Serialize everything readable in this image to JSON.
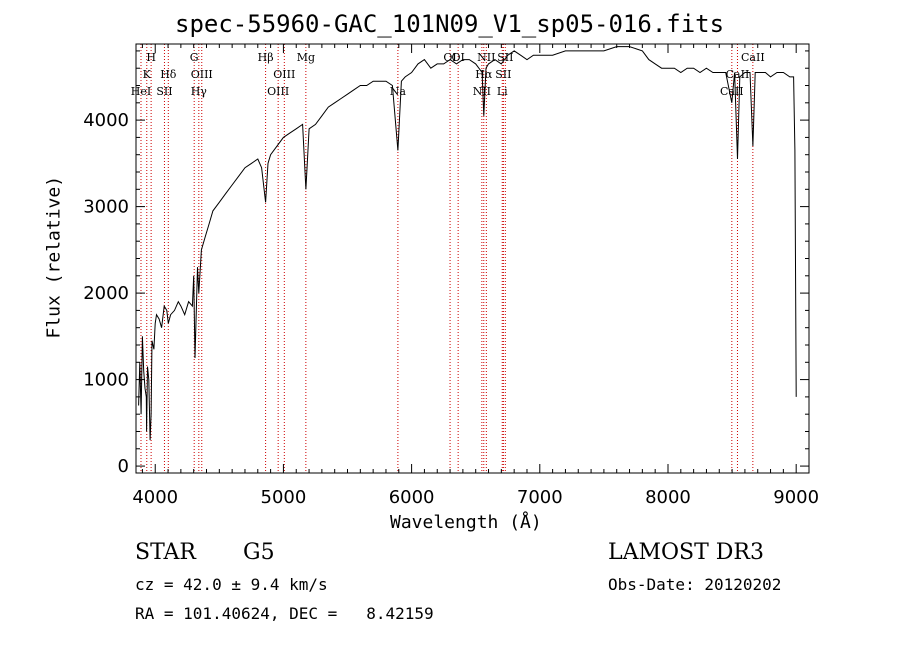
{
  "chart_data": {
    "type": "line",
    "title": "spec-55960-GAC_101N09_V1_sp05-016.fits",
    "xlabel": "Wavelength (Å)",
    "ylabel": "Flux (relative)",
    "xlim": [
      3850,
      9100
    ],
    "ylim": [
      -80,
      4880
    ],
    "x_ticks": [
      4000,
      5000,
      6000,
      7000,
      8000,
      9000
    ],
    "y_ticks": [
      0,
      1000,
      2000,
      3000,
      4000
    ],
    "x_tick_labels": [
      "4000",
      "5000",
      "6000",
      "7000",
      "8000",
      "9000"
    ],
    "y_tick_labels": [
      "0",
      "1000",
      "2000",
      "3000",
      "4000"
    ],
    "grid": false,
    "series": [
      {
        "name": "spectrum",
        "x": [
          3870,
          3880,
          3890,
          3900,
          3910,
          3920,
          3930,
          3933,
          3940,
          3950,
          3960,
          3968,
          3975,
          3990,
          4000,
          4010,
          4030,
          4050,
          4070,
          4090,
          4102,
          4120,
          4150,
          4180,
          4200,
          4230,
          4260,
          4290,
          4300,
          4310,
          4330,
          4340,
          4360,
          4390,
          4420,
          4450,
          4500,
          4550,
          4600,
          4650,
          4700,
          4750,
          4800,
          4830,
          4861,
          4880,
          4900,
          4950,
          5000,
          5050,
          5100,
          5150,
          5175,
          5200,
          5250,
          5300,
          5350,
          5400,
          5450,
          5500,
          5550,
          5600,
          5650,
          5700,
          5750,
          5800,
          5850,
          5893,
          5920,
          5950,
          6000,
          6050,
          6100,
          6150,
          6200,
          6250,
          6300,
          6350,
          6400,
          6450,
          6500,
          6550,
          6563,
          6580,
          6600,
          6650,
          6700,
          6750,
          6800,
          6850,
          6900,
          6950,
          7000,
          7100,
          7200,
          7300,
          7400,
          7500,
          7600,
          7650,
          7700,
          7800,
          7850,
          7900,
          7950,
          8000,
          8050,
          8100,
          8150,
          8200,
          8250,
          8300,
          8350,
          8400,
          8450,
          8498,
          8520,
          8542,
          8560,
          8600,
          8640,
          8662,
          8680,
          8720,
          8760,
          8800,
          8850,
          8900,
          8950,
          8980,
          8990,
          9000
        ],
        "values": [
          700,
          1200,
          600,
          1500,
          1100,
          900,
          800,
          400,
          1150,
          1000,
          300,
          600,
          1450,
          1350,
          1650,
          1750,
          1700,
          1600,
          1850,
          1800,
          1650,
          1750,
          1800,
          1900,
          1850,
          1750,
          1900,
          1850,
          2200,
          1250,
          2300,
          2000,
          2500,
          2650,
          2800,
          2950,
          3050,
          3150,
          3250,
          3350,
          3450,
          3500,
          3550,
          3450,
          3050,
          3500,
          3600,
          3700,
          3800,
          3850,
          3900,
          3950,
          3200,
          3900,
          3950,
          4050,
          4150,
          4200,
          4250,
          4300,
          4350,
          4400,
          4400,
          4450,
          4450,
          4450,
          4400,
          3650,
          4450,
          4500,
          4550,
          4650,
          4700,
          4600,
          4650,
          4650,
          4700,
          4650,
          4700,
          4700,
          4650,
          4550,
          4050,
          4600,
          4650,
          4700,
          4650,
          4750,
          4800,
          4750,
          4700,
          4750,
          4750,
          4750,
          4800,
          4800,
          4800,
          4800,
          4850,
          4850,
          4850,
          4800,
          4700,
          4650,
          4600,
          4600,
          4600,
          4550,
          4600,
          4600,
          4550,
          4600,
          4550,
          4550,
          4550,
          4200,
          4550,
          3550,
          4500,
          4550,
          4550,
          3700,
          4550,
          4550,
          4550,
          4500,
          4550,
          4550,
          4500,
          4500,
          3650,
          800
        ]
      }
    ],
    "line_markers": [
      {
        "name": "HeI",
        "wavelength": 3889,
        "row": 3
      },
      {
        "name": "K",
        "wavelength": 3934,
        "row": 2
      },
      {
        "name": "H",
        "wavelength": 3968,
        "row": 1
      },
      {
        "name": "SII",
        "wavelength": 4072,
        "row": 3
      },
      {
        "name": "Hδ",
        "wavelength": 4102,
        "row": 2
      },
      {
        "name": "G",
        "wavelength": 4304,
        "row": 1
      },
      {
        "name": "Hγ",
        "wavelength": 4340,
        "row": 3
      },
      {
        "name": "OIII",
        "wavelength": 4363,
        "row": 2
      },
      {
        "name": "Hβ",
        "wavelength": 4861,
        "row": 1
      },
      {
        "name": "OIII",
        "wavelength": 4959,
        "row": 3
      },
      {
        "name": "OIII",
        "wavelength": 5007,
        "row": 2
      },
      {
        "name": "Mg",
        "wavelength": 5175,
        "row": 1
      },
      {
        "name": "Na",
        "wavelength": 5893,
        "row": 3
      },
      {
        "name": "OI",
        "wavelength": 6300,
        "row": 1
      },
      {
        "name": "OI",
        "wavelength": 6363,
        "row": 1
      },
      {
        "name": "NII",
        "wavelength": 6548,
        "row": 3
      },
      {
        "name": "Hα",
        "wavelength": 6563,
        "row": 2
      },
      {
        "name": "NII",
        "wavelength": 6583,
        "row": 1
      },
      {
        "name": "Li",
        "wavelength": 6707,
        "row": 3
      },
      {
        "name": "SII",
        "wavelength": 6716,
        "row": 2
      },
      {
        "name": "SII",
        "wavelength": 6731,
        "row": 1
      },
      {
        "name": "CaII",
        "wavelength": 8498,
        "row": 3
      },
      {
        "name": "CaII",
        "wavelength": 8542,
        "row": 2
      },
      {
        "name": "CaII",
        "wavelength": 8662,
        "row": 1
      }
    ]
  },
  "info": {
    "object_class": "STAR",
    "subclass": "G5",
    "redshift": "cz = 42.0 ± 9.4 km/s",
    "coords": "RA = 101.40624, DEC =   8.42159",
    "survey": "LAMOST DR3",
    "obs_date": "Obs-Date: 20120202"
  },
  "colors": {
    "line": "#000000",
    "marker": "#cc0000"
  }
}
